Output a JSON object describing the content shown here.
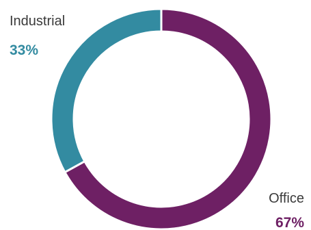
{
  "chart_data": {
    "type": "pie",
    "donut": true,
    "slices": [
      {
        "label": "Industrial",
        "value": 33,
        "value_label": "33%",
        "color": "#338ba1",
        "label_side": "left"
      },
      {
        "label": "Office",
        "value": 67,
        "value_label": "67%",
        "color": "#6e2064",
        "label_side": "right"
      }
    ],
    "start_angle_deg": 0,
    "legend": "none",
    "title": ""
  }
}
